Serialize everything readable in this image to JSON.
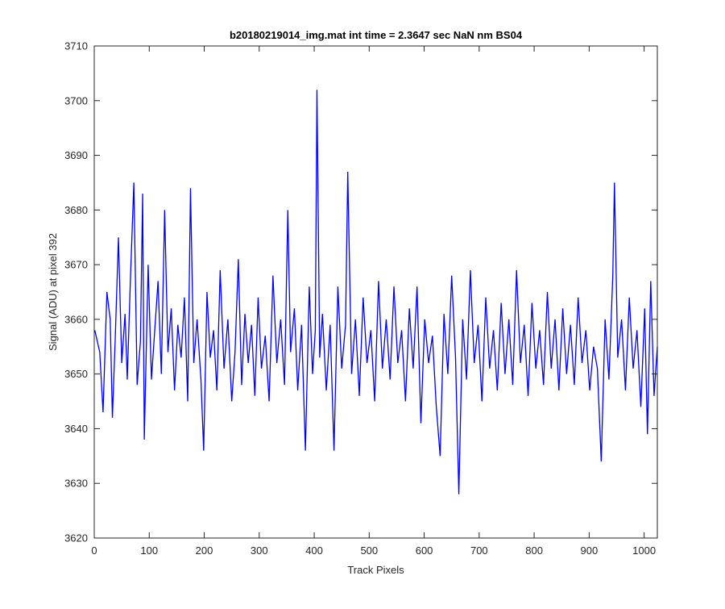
{
  "chart_data": {
    "type": "line",
    "title": "b20180219014_img.mat int time = 2.3647 sec  NaN nm BS04",
    "xlabel": "Track Pixels",
    "ylabel": "Signal (ADU) at pixel 392",
    "xlim": [
      0,
      1024
    ],
    "ylim": [
      3620,
      3710
    ],
    "xticks": [
      0,
      100,
      200,
      300,
      400,
      500,
      600,
      700,
      800,
      900,
      1000
    ],
    "yticks": [
      3620,
      3630,
      3640,
      3650,
      3660,
      3670,
      3680,
      3690,
      3700,
      3710
    ],
    "grid": false,
    "legend": "none",
    "series": [
      {
        "color": "#0000ff",
        "x": [
          1,
          10,
          16,
          23,
          29,
          33,
          38,
          44,
          50,
          56,
          60,
          66,
          72,
          78,
          84,
          88,
          91,
          98,
          104,
          110,
          116,
          122,
          128,
          134,
          140,
          146,
          152,
          158,
          164,
          170,
          175,
          181,
          187,
          194,
          199,
          205,
          211,
          217,
          223,
          229,
          236,
          243,
          250,
          256,
          262,
          268,
          274,
          280,
          286,
          292,
          298,
          304,
          311,
          318,
          325,
          332,
          339,
          346,
          352,
          357,
          364,
          370,
          377,
          384,
          391,
          397,
          402,
          405,
          410,
          415,
          422,
          429,
          436,
          443,
          450,
          457,
          461,
          468,
          475,
          482,
          489,
          496,
          503,
          510,
          517,
          524,
          531,
          538,
          545,
          552,
          559,
          566,
          573,
          580,
          587,
          594,
          601,
          608,
          615,
          622,
          629,
          636,
          643,
          650,
          657,
          663,
          670,
          677,
          684,
          691,
          698,
          705,
          712,
          719,
          726,
          733,
          740,
          747,
          754,
          761,
          768,
          775,
          782,
          789,
          796,
          803,
          810,
          817,
          824,
          831,
          838,
          845,
          852,
          859,
          866,
          873,
          880,
          887,
          894,
          901,
          908,
          915,
          922,
          929,
          936,
          943,
          946,
          952,
          959,
          966,
          973,
          980,
          987,
          994,
          1001,
          1006,
          1012,
          1018,
          1024
        ],
        "y": [
          3658,
          3654,
          3643,
          3665,
          3660,
          3642,
          3656,
          3675,
          3652,
          3661,
          3649,
          3668,
          3685,
          3648,
          3656,
          3683,
          3638,
          3670,
          3649,
          3658,
          3667,
          3650,
          3680,
          3654,
          3662,
          3647,
          3659,
          3653,
          3664,
          3645,
          3684,
          3652,
          3660,
          3649,
          3636,
          3665,
          3653,
          3658,
          3647,
          3669,
          3651,
          3660,
          3645,
          3654,
          3671,
          3648,
          3661,
          3652,
          3659,
          3646,
          3664,
          3651,
          3657,
          3645,
          3668,
          3652,
          3660,
          3648,
          3680,
          3654,
          3662,
          3647,
          3659,
          3636,
          3666,
          3650,
          3658,
          3702,
          3653,
          3661,
          3647,
          3659,
          3636,
          3666,
          3651,
          3659,
          3687,
          3650,
          3660,
          3646,
          3664,
          3652,
          3658,
          3645,
          3667,
          3651,
          3660,
          3649,
          3666,
          3652,
          3658,
          3645,
          3662,
          3651,
          3666,
          3641,
          3660,
          3652,
          3657,
          3644,
          3635,
          3661,
          3650,
          3668,
          3653,
          3628,
          3660,
          3649,
          3669,
          3652,
          3659,
          3645,
          3664,
          3651,
          3658,
          3647,
          3663,
          3650,
          3660,
          3648,
          3669,
          3652,
          3659,
          3646,
          3663,
          3651,
          3658,
          3648,
          3665,
          3651,
          3660,
          3647,
          3662,
          3650,
          3659,
          3648,
          3664,
          3652,
          3658,
          3647,
          3655,
          3651,
          3634,
          3660,
          3649,
          3668,
          3685,
          3653,
          3660,
          3647,
          3664,
          3651,
          3658,
          3644,
          3662,
          3639,
          3667,
          3646,
          3655
        ]
      }
    ]
  }
}
